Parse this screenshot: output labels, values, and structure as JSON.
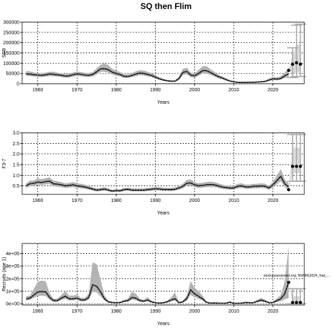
{
  "title": "SQ then Flim",
  "chart_data": [
    {
      "type": "line",
      "ylabel": "SSB",
      "xlabel": "Years",
      "xlim": [
        1956,
        2028
      ],
      "ylim": [
        0,
        300000
      ],
      "xticks": [
        1960,
        1970,
        1980,
        1990,
        2000,
        2010,
        2020
      ],
      "yticks": [
        0,
        50000,
        100000,
        150000,
        200000,
        250000,
        300000
      ],
      "ytick_labels": [
        "0",
        "50000",
        "100000",
        "150000",
        "200000",
        "250000",
        "300000"
      ],
      "grid": true,
      "years": [
        1957,
        1958,
        1959,
        1960,
        1961,
        1962,
        1963,
        1964,
        1965,
        1966,
        1967,
        1968,
        1969,
        1970,
        1971,
        1972,
        1973,
        1974,
        1975,
        1976,
        1977,
        1978,
        1979,
        1980,
        1981,
        1982,
        1983,
        1984,
        1985,
        1986,
        1987,
        1988,
        1989,
        1990,
        1991,
        1992,
        1993,
        1994,
        1995,
        1996,
        1997,
        1998,
        1999,
        2000,
        2001,
        2002,
        2003,
        2004,
        2005,
        2006,
        2007,
        2008,
        2009,
        2010,
        2011,
        2012,
        2013,
        2014,
        2015,
        2016,
        2017,
        2018,
        2019,
        2020,
        2021,
        2022,
        2023,
        2024
      ],
      "median": [
        48000,
        47000,
        44000,
        42000,
        41000,
        43000,
        47000,
        46000,
        43000,
        41000,
        37000,
        38000,
        44000,
        48000,
        46000,
        42000,
        41000,
        45000,
        58000,
        72000,
        73000,
        68000,
        56000,
        50000,
        45000,
        36000,
        35000,
        40000,
        47000,
        52000,
        50000,
        45000,
        40000,
        32000,
        24000,
        18000,
        14000,
        12000,
        12000,
        25000,
        55000,
        60000,
        42000,
        38000,
        50000,
        63000,
        64000,
        55000,
        45000,
        35000,
        28000,
        20000,
        13000,
        9000,
        7000,
        6000,
        6000,
        7000,
        7000,
        8000,
        9000,
        11000,
        18000,
        24000,
        22000,
        26000,
        38000,
        48000
      ],
      "lower": [
        38000,
        37000,
        35000,
        33000,
        32000,
        34000,
        37000,
        36000,
        34000,
        32000,
        29000,
        30000,
        34000,
        37000,
        36000,
        33000,
        32000,
        35000,
        45000,
        58000,
        58000,
        54000,
        44000,
        39000,
        35000,
        28000,
        28000,
        32000,
        37000,
        41000,
        40000,
        36000,
        32000,
        25000,
        19000,
        14000,
        11000,
        9000,
        9000,
        18000,
        42000,
        46000,
        32000,
        29000,
        38000,
        49000,
        50000,
        43000,
        35000,
        27000,
        22000,
        15000,
        10000,
        7000,
        5000,
        4000,
        4000,
        5000,
        5000,
        6000,
        7000,
        8000,
        13000,
        18000,
        16000,
        19000,
        27000,
        32000
      ],
      "upper": [
        62000,
        60000,
        55000,
        52000,
        51000,
        54000,
        58000,
        58000,
        54000,
        51000,
        47000,
        48000,
        55000,
        60000,
        57000,
        53000,
        52000,
        57000,
        74000,
        92000,
        100000,
        90000,
        72000,
        64000,
        57000,
        46000,
        45000,
        52000,
        60000,
        66000,
        64000,
        58000,
        52000,
        41000,
        31000,
        24000,
        18000,
        16000,
        16000,
        33000,
        72000,
        78000,
        55000,
        50000,
        66000,
        85000,
        86000,
        72000,
        58000,
        45000,
        36000,
        27000,
        17000,
        12000,
        9000,
        8000,
        8000,
        9000,
        10000,
        11000,
        12000,
        15000,
        25000,
        33000,
        30000,
        36000,
        55000,
        75000
      ],
      "projection": {
        "years": [
          2024,
          2025,
          2026,
          2027
        ],
        "points": [
          65000,
          95000,
          102000,
          95000
        ],
        "bar_lower": [
          null,
          30000,
          35000,
          35000
        ],
        "bar_upper": [
          null,
          175000,
          285000,
          290000
        ],
        "band_lower": [
          null,
          50000,
          55000,
          55000
        ],
        "band_upper": [
          null,
          140000,
          190000,
          190000
        ]
      }
    },
    {
      "type": "line",
      "ylabel": "F3-7",
      "xlabel": "Years",
      "xlim": [
        1956,
        2028
      ],
      "ylim": [
        0.1,
        3.0
      ],
      "xticks": [
        1960,
        1970,
        1980,
        1990,
        2000,
        2010,
        2020
      ],
      "yticks": [
        0.5,
        1.0,
        1.5,
        2.0,
        2.5,
        3.0
      ],
      "ytick_labels": [
        "0.5",
        "1.0",
        "1.5",
        "2.0",
        "2.5",
        "3.0"
      ],
      "grid": true,
      "years": [
        1957,
        1958,
        1959,
        1960,
        1961,
        1962,
        1963,
        1964,
        1965,
        1966,
        1967,
        1968,
        1969,
        1970,
        1971,
        1972,
        1973,
        1974,
        1975,
        1976,
        1977,
        1978,
        1979,
        1980,
        1981,
        1982,
        1983,
        1984,
        1985,
        1986,
        1987,
        1988,
        1989,
        1990,
        1991,
        1992,
        1993,
        1994,
        1995,
        1996,
        1997,
        1998,
        1999,
        2000,
        2001,
        2002,
        2003,
        2004,
        2005,
        2006,
        2007,
        2008,
        2009,
        2010,
        2011,
        2012,
        2013,
        2014,
        2015,
        2016,
        2017,
        2018,
        2019,
        2020,
        2021,
        2022,
        2023,
        2024
      ],
      "median": [
        0.5,
        0.6,
        0.62,
        0.68,
        0.66,
        0.7,
        0.72,
        0.6,
        0.58,
        0.55,
        0.5,
        0.52,
        0.55,
        0.5,
        0.48,
        0.45,
        0.4,
        0.35,
        0.3,
        0.32,
        0.35,
        0.3,
        0.25,
        0.28,
        0.27,
        0.32,
        0.34,
        0.3,
        0.3,
        0.3,
        0.3,
        0.32,
        0.34,
        0.36,
        0.35,
        0.33,
        0.33,
        0.32,
        0.34,
        0.4,
        0.48,
        0.62,
        0.64,
        0.55,
        0.5,
        0.52,
        0.55,
        0.56,
        0.55,
        0.5,
        0.45,
        0.42,
        0.4,
        0.4,
        0.48,
        0.5,
        0.45,
        0.45,
        0.48,
        0.48,
        0.5,
        0.48,
        0.4,
        0.55,
        0.75,
        0.95,
        0.6,
        0.45
      ],
      "lower": [
        0.4,
        0.48,
        0.5,
        0.55,
        0.54,
        0.57,
        0.58,
        0.48,
        0.46,
        0.44,
        0.4,
        0.42,
        0.44,
        0.4,
        0.38,
        0.36,
        0.32,
        0.28,
        0.24,
        0.25,
        0.28,
        0.24,
        0.2,
        0.22,
        0.21,
        0.25,
        0.27,
        0.24,
        0.24,
        0.24,
        0.24,
        0.25,
        0.27,
        0.29,
        0.28,
        0.26,
        0.26,
        0.25,
        0.27,
        0.32,
        0.38,
        0.5,
        0.52,
        0.44,
        0.4,
        0.42,
        0.44,
        0.45,
        0.44,
        0.4,
        0.36,
        0.34,
        0.32,
        0.32,
        0.38,
        0.4,
        0.36,
        0.36,
        0.38,
        0.38,
        0.4,
        0.38,
        0.32,
        0.43,
        0.58,
        0.72,
        0.45,
        0.3
      ],
      "upper": [
        0.62,
        0.74,
        0.76,
        0.84,
        0.82,
        0.86,
        0.9,
        0.75,
        0.72,
        0.68,
        0.62,
        0.64,
        0.68,
        0.62,
        0.6,
        0.56,
        0.5,
        0.44,
        0.38,
        0.4,
        0.44,
        0.38,
        0.32,
        0.35,
        0.34,
        0.4,
        0.42,
        0.38,
        0.38,
        0.38,
        0.38,
        0.4,
        0.42,
        0.45,
        0.44,
        0.41,
        0.41,
        0.4,
        0.42,
        0.5,
        0.6,
        0.78,
        0.8,
        0.68,
        0.62,
        0.65,
        0.68,
        0.7,
        0.68,
        0.62,
        0.56,
        0.52,
        0.5,
        0.5,
        0.6,
        0.62,
        0.56,
        0.56,
        0.6,
        0.6,
        0.62,
        0.6,
        0.5,
        0.7,
        0.98,
        1.3,
        0.8,
        0.62
      ],
      "projection": {
        "years": [
          2024,
          2025,
          2026,
          2027
        ],
        "points": [
          0.32,
          1.42,
          1.42,
          1.42
        ],
        "bar_lower": [
          null,
          0.72,
          0.72,
          0.72
        ],
        "bar_upper": [
          null,
          2.92,
          2.92,
          2.92
        ],
        "band_lower": [
          null,
          1.1,
          1.1,
          1.1
        ],
        "band_upper": [
          null,
          2.3,
          2.3,
          2.3
        ]
      }
    },
    {
      "type": "line",
      "ylabel": "Recruits (age 1)",
      "xlabel": "Years",
      "xlim": [
        1956,
        2028
      ],
      "ylim": [
        -10000.0,
        480000.0
      ],
      "xticks": [
        1960,
        1970,
        1980,
        1990,
        2000,
        2010,
        2020
      ],
      "yticks": [
        0,
        100000,
        200000,
        300000,
        400000
      ],
      "ytick_labels": [
        "0e+00",
        "1e+05",
        "2e+05",
        "3e+05",
        "4e+05"
      ],
      "grid": true,
      "annotation": "stockassessment.org, NWWG2024_had_...",
      "years": [
        1957,
        1958,
        1959,
        1960,
        1961,
        1962,
        1963,
        1964,
        1965,
        1966,
        1967,
        1968,
        1969,
        1970,
        1971,
        1972,
        1973,
        1974,
        1975,
        1976,
        1977,
        1978,
        1979,
        1980,
        1981,
        1982,
        1983,
        1984,
        1985,
        1986,
        1987,
        1988,
        1989,
        1990,
        1991,
        1992,
        1993,
        1994,
        1995,
        1996,
        1997,
        1998,
        1999,
        2000,
        2001,
        2002,
        2003,
        2004,
        2005,
        2006,
        2007,
        2008,
        2009,
        2010,
        2011,
        2012,
        2013,
        2014,
        2015,
        2016,
        2017,
        2018,
        2019,
        2020,
        2021,
        2022,
        2023,
        2024
      ],
      "median": [
        40000,
        45000,
        70000,
        95000,
        98000,
        95000,
        50000,
        25000,
        25000,
        45000,
        60000,
        40000,
        40000,
        45000,
        30000,
        30000,
        50000,
        150000,
        140000,
        95000,
        40000,
        15000,
        10000,
        8000,
        10000,
        20000,
        25000,
        50000,
        45000,
        25000,
        20000,
        30000,
        15000,
        8000,
        5000,
        8000,
        15000,
        30000,
        40000,
        8000,
        15000,
        40000,
        110000,
        80000,
        60000,
        40000,
        12000,
        5000,
        6000,
        5000,
        4000,
        5000,
        12000,
        3000,
        3000,
        5000,
        10000,
        8000,
        8000,
        20000,
        28000,
        20000,
        8000,
        10000,
        25000,
        40000,
        80000,
        170000
      ],
      "lower": [
        25000,
        30000,
        48000,
        62000,
        64000,
        62000,
        32000,
        15000,
        15000,
        30000,
        38000,
        26000,
        26000,
        30000,
        20000,
        20000,
        32000,
        95000,
        90000,
        60000,
        26000,
        9000,
        6000,
        5000,
        6000,
        12000,
        16000,
        32000,
        28000,
        16000,
        12000,
        18000,
        9000,
        5000,
        3000,
        5000,
        9000,
        18000,
        25000,
        5000,
        9000,
        25000,
        70000,
        52000,
        38000,
        25000,
        7000,
        3000,
        4000,
        3000,
        2500,
        3000,
        7000,
        2000,
        2000,
        3000,
        6000,
        5000,
        5000,
        12000,
        17000,
        12000,
        5000,
        6000,
        13000,
        20000,
        35000,
        45000
      ],
      "upper": [
        60000,
        65000,
        120000,
        175000,
        185000,
        180000,
        85000,
        40000,
        42000,
        70000,
        100000,
        65000,
        65000,
        72000,
        48000,
        48000,
        80000,
        330000,
        315000,
        195000,
        65000,
        25000,
        16000,
        13000,
        16000,
        32000,
        42000,
        95000,
        80000,
        42000,
        32000,
        52000,
        25000,
        13000,
        8000,
        13000,
        25000,
        50000,
        90000,
        13000,
        25000,
        65000,
        180000,
        130000,
        100000,
        65000,
        20000,
        8000,
        10000,
        8000,
        6500,
        8000,
        20000,
        5000,
        5000,
        8000,
        17000,
        13000,
        13000,
        33000,
        48000,
        33000,
        13000,
        17000,
        42000,
        70000,
        180000,
        460000
      ],
      "projection": {
        "years": [
          2024,
          2025,
          2026,
          2027
        ],
        "points": [
          170000,
          10000,
          10000,
          10000
        ],
        "bar_lower": [
          null,
          500,
          500,
          500
        ],
        "bar_upper": [
          null,
          120000,
          120000,
          120000
        ],
        "band_lower": [
          null,
          2000,
          2000,
          2000
        ],
        "band_upper": [
          null,
          60000,
          60000,
          60000
        ]
      }
    }
  ]
}
